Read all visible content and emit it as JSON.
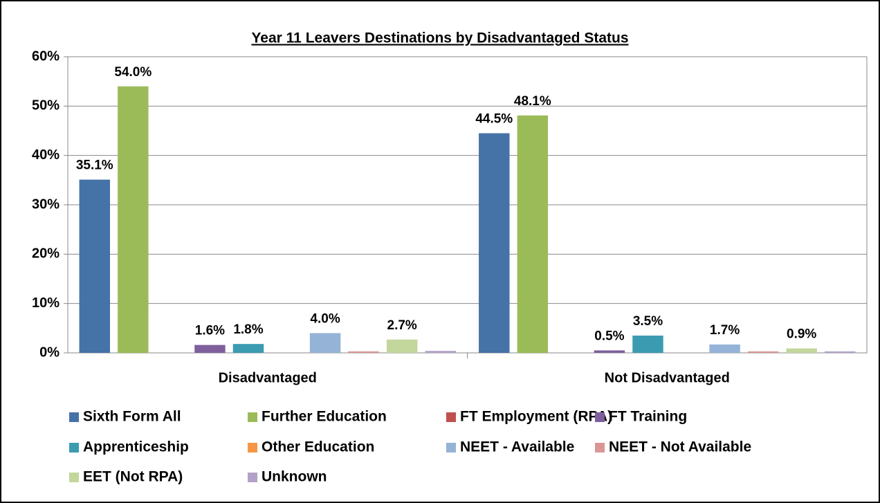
{
  "chart_data": {
    "type": "bar",
    "title": "Year 11 Leavers Destinations by Disadvantaged Status",
    "categories": [
      "Disadvantaged",
      "Not Disadvantaged"
    ],
    "series": [
      {
        "name": "Sixth Form All",
        "color": "#4572a7",
        "values": [
          35.1,
          44.5
        ],
        "value_labels": [
          "35.1%",
          "44.5%"
        ]
      },
      {
        "name": "Further Education",
        "color": "#9bbb59",
        "values": [
          54.0,
          48.1
        ],
        "value_labels": [
          "54.0%",
          "48.1%"
        ]
      },
      {
        "name": "FT Employment (RPA)",
        "color": "#c0504d",
        "values": [
          0,
          0
        ],
        "value_labels": [
          null,
          null
        ]
      },
      {
        "name": "FT Training",
        "color": "#7f5f9c",
        "values": [
          1.6,
          0.5
        ],
        "value_labels": [
          "1.6%",
          "0.5%"
        ]
      },
      {
        "name": "Apprenticeship",
        "color": "#3b9bb0",
        "values": [
          1.8,
          3.5
        ],
        "value_labels": [
          "1.8%",
          "3.5%"
        ]
      },
      {
        "name": "Other Education",
        "color": "#f79646",
        "values": [
          0,
          0
        ],
        "value_labels": [
          null,
          null
        ]
      },
      {
        "name": "NEET - Available",
        "color": "#95b3d7",
        "values": [
          4.0,
          1.7
        ],
        "value_labels": [
          "4.0%",
          "1.7%"
        ]
      },
      {
        "name": "NEET - Not Available",
        "color": "#d99694",
        "values": [
          0.3,
          0.3
        ],
        "value_labels": [
          null,
          null
        ]
      },
      {
        "name": "EET (Not RPA)",
        "color": "#c3d69b",
        "values": [
          2.7,
          0.9
        ],
        "value_labels": [
          "2.7%",
          "0.9%"
        ]
      },
      {
        "name": "Unknown",
        "color": "#b3a2c7",
        "values": [
          0.4,
          0.3
        ],
        "value_labels": [
          null,
          null
        ]
      }
    ],
    "ylim": [
      0,
      60
    ],
    "yticks": [
      {
        "value": 0,
        "label": "0%"
      },
      {
        "value": 10,
        "label": "10%"
      },
      {
        "value": 20,
        "label": "20%"
      },
      {
        "value": 30,
        "label": "30%"
      },
      {
        "value": 40,
        "label": "40%"
      },
      {
        "value": 50,
        "label": "50%"
      },
      {
        "value": 60,
        "label": "60%"
      }
    ],
    "grid": true,
    "legend": "bottom"
  }
}
